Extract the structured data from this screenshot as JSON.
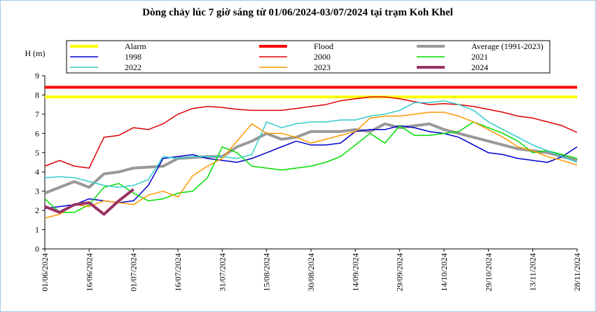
{
  "chart_data": {
    "type": "line",
    "title": "Dòng chảy lúc 7 giờ sáng từ 01/06/2024-03/07/2024 tại trạm Koh Khel",
    "y_label": "H (m)",
    "x": [
      "01/06/2024",
      "06/06/2024",
      "11/06/2024",
      "16/06/2024",
      "21/06/2024",
      "26/06/2024",
      "01/07/2024",
      "06/07/2024",
      "11/07/2024",
      "16/07/2024",
      "21/07/2024",
      "26/07/2024",
      "31/07/2024",
      "05/08/2024",
      "10/08/2024",
      "15/08/2024",
      "20/08/2024",
      "25/08/2024",
      "30/08/2024",
      "04/09/2024",
      "09/09/2024",
      "14/09/2024",
      "19/09/2024",
      "24/09/2024",
      "29/09/2024",
      "04/10/2024",
      "09/10/2024",
      "14/10/2024",
      "19/10/2024",
      "24/10/2024",
      "29/10/2024",
      "03/11/2024",
      "08/11/2024",
      "13/11/2024",
      "18/11/2024",
      "23/11/2024",
      "28/11/2024"
    ],
    "xlim": [
      "01/06/2024",
      "28/11/2024"
    ],
    "xticks": [
      "01/06/2024",
      "16/06/2024",
      "01/07/2024",
      "16/07/2024",
      "31/07/2024",
      "15/08/2024",
      "30/08/2024",
      "14/09/2024",
      "29/09/2024",
      "14/10/2024",
      "29/10/2024",
      "13/11/2024",
      "28/11/2024"
    ],
    "ylim": [
      0,
      9
    ],
    "yticks": [
      0,
      1,
      2,
      3,
      4,
      5,
      6,
      7,
      8,
      9
    ],
    "grid": false,
    "series": [
      {
        "name": "Alarm",
        "color": "#ffff00",
        "width": 4,
        "values": [
          7.9,
          7.9,
          7.9,
          7.9,
          7.9,
          7.9,
          7.9,
          7.9,
          7.9,
          7.9,
          7.9,
          7.9,
          7.9,
          7.9,
          7.9,
          7.9,
          7.9,
          7.9,
          7.9,
          7.9,
          7.9,
          7.9,
          7.9,
          7.9,
          7.9,
          7.9,
          7.9,
          7.9,
          7.9,
          7.9,
          7.9,
          7.9,
          7.9,
          7.9,
          7.9,
          7.9,
          7.9
        ]
      },
      {
        "name": "Flood",
        "color": "#ff0000",
        "width": 4,
        "values": [
          8.4,
          8.4,
          8.4,
          8.4,
          8.4,
          8.4,
          8.4,
          8.4,
          8.4,
          8.4,
          8.4,
          8.4,
          8.4,
          8.4,
          8.4,
          8.4,
          8.4,
          8.4,
          8.4,
          8.4,
          8.4,
          8.4,
          8.4,
          8.4,
          8.4,
          8.4,
          8.4,
          8.4,
          8.4,
          8.4,
          8.4,
          8.4,
          8.4,
          8.4,
          8.4,
          8.4,
          8.4
        ]
      },
      {
        "name": "Average (1991-2023)",
        "color": "#999999",
        "width": 4,
        "values": [
          2.9,
          3.2,
          3.5,
          3.2,
          3.9,
          4.0,
          4.2,
          4.25,
          4.3,
          4.7,
          4.75,
          4.8,
          4.8,
          5.3,
          5.6,
          6.0,
          5.7,
          5.8,
          6.1,
          6.1,
          6.1,
          6.2,
          6.1,
          6.5,
          6.3,
          6.4,
          6.5,
          6.2,
          6.0,
          5.8,
          5.6,
          5.4,
          5.2,
          5.1,
          5.0,
          4.8,
          4.6
        ]
      },
      {
        "name": "1998",
        "color": "#0000cc",
        "width": 1.5,
        "values": [
          2.1,
          2.2,
          2.3,
          2.6,
          2.5,
          2.4,
          2.5,
          3.3,
          4.7,
          4.8,
          4.9,
          4.7,
          4.6,
          4.5,
          4.7,
          5.0,
          5.3,
          5.6,
          5.4,
          5.4,
          5.5,
          6.1,
          6.2,
          6.2,
          6.4,
          6.3,
          6.1,
          6.0,
          5.8,
          5.4,
          5.0,
          4.9,
          4.7,
          4.6,
          4.5,
          4.8,
          5.3
        ]
      },
      {
        "name": "2000",
        "color": "#dd0000",
        "width": 1.5,
        "values": [
          4.3,
          4.6,
          4.3,
          4.2,
          5.8,
          5.9,
          6.3,
          6.2,
          6.5,
          7.0,
          7.3,
          7.4,
          7.35,
          7.25,
          7.2,
          7.2,
          7.2,
          7.3,
          7.4,
          7.5,
          7.7,
          7.8,
          7.9,
          7.9,
          7.8,
          7.65,
          7.5,
          7.55,
          7.5,
          7.4,
          7.25,
          7.1,
          6.9,
          6.8,
          6.6,
          6.4,
          6.05
        ]
      },
      {
        "name": "2021",
        "color": "#00dd00",
        "width": 1.5,
        "values": [
          2.6,
          1.9,
          1.9,
          2.3,
          3.2,
          3.4,
          2.9,
          2.5,
          2.6,
          2.9,
          3.0,
          3.7,
          5.3,
          5.0,
          4.3,
          4.2,
          4.1,
          4.2,
          4.3,
          4.5,
          4.8,
          5.4,
          6.0,
          5.5,
          6.4,
          5.9,
          5.9,
          6.0,
          6.1,
          6.6,
          6.3,
          6.0,
          5.6,
          5.0,
          5.1,
          4.9,
          4.7
        ]
      },
      {
        "name": "2022",
        "color": "#33cccc",
        "width": 1.5,
        "values": [
          3.7,
          3.75,
          3.7,
          3.5,
          3.3,
          3.2,
          3.3,
          3.6,
          4.8,
          4.7,
          4.8,
          4.8,
          4.8,
          4.7,
          4.9,
          6.6,
          6.3,
          6.5,
          6.6,
          6.6,
          6.7,
          6.7,
          6.9,
          7.0,
          7.2,
          7.6,
          7.6,
          7.7,
          7.5,
          7.2,
          6.6,
          6.2,
          5.8,
          5.4,
          5.1,
          4.8,
          4.5
        ]
      },
      {
        "name": "2023",
        "color": "#ff9900",
        "width": 1.5,
        "values": [
          1.6,
          1.8,
          2.3,
          2.2,
          2.5,
          2.4,
          2.3,
          2.8,
          3.0,
          2.7,
          3.8,
          4.3,
          4.7,
          5.6,
          6.5,
          6.0,
          6.0,
          5.8,
          5.5,
          5.7,
          5.9,
          6.1,
          6.8,
          6.9,
          6.9,
          7.0,
          7.1,
          7.1,
          6.9,
          6.6,
          6.2,
          5.8,
          5.3,
          5.1,
          4.8,
          4.6,
          4.35
        ]
      },
      {
        "name": "2024",
        "color": "#993366",
        "width": 4,
        "values": [
          2.2,
          1.9,
          2.3,
          2.4,
          1.8,
          2.5,
          3.1,
          null,
          null,
          null,
          null,
          null,
          null,
          null,
          null,
          null,
          null,
          null,
          null,
          null,
          null,
          null,
          null,
          null,
          null,
          null,
          null,
          null,
          null,
          null,
          null,
          null,
          null,
          null,
          null,
          null,
          null
        ]
      }
    ]
  }
}
